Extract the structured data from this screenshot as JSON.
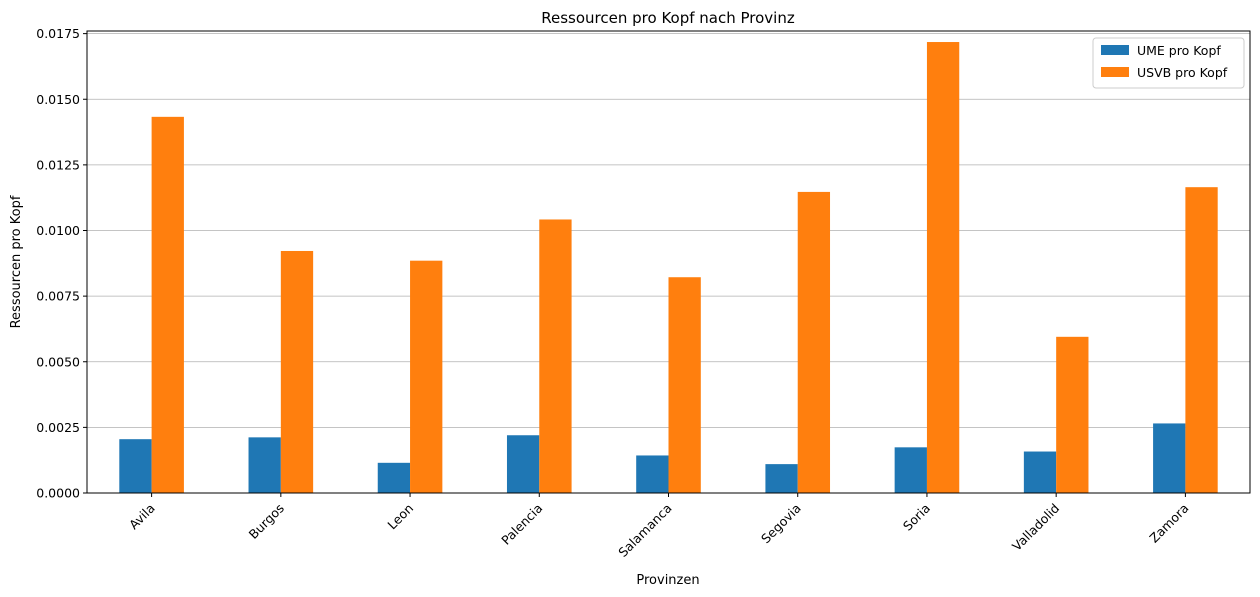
{
  "chart_data": {
    "type": "bar",
    "title": "Ressourcen pro Kopf nach Provinz",
    "xlabel": "Provinzen",
    "ylabel": "Ressourcen pro Kopf",
    "categories": [
      "Avila",
      "Burgos",
      "Leon",
      "Palencia",
      "Salamanca",
      "Segovia",
      "Soria",
      "Valladolid",
      "Zamora"
    ],
    "series": [
      {
        "name": "UME pro Kopf",
        "color": "#1f77b4",
        "values": [
          0.00205,
          0.00212,
          0.00115,
          0.0022,
          0.00143,
          0.0011,
          0.00174,
          0.00158,
          0.00265
        ]
      },
      {
        "name": "USVB pro Kopf",
        "color": "#ff7f0e",
        "values": [
          0.01433,
          0.00922,
          0.00885,
          0.01042,
          0.00822,
          0.01147,
          0.01718,
          0.00595,
          0.01165
        ]
      }
    ],
    "ylim": [
      0,
      0.0176
    ],
    "yticks": [
      "0.0000",
      "0.0025",
      "0.0050",
      "0.0075",
      "0.0100",
      "0.0125",
      "0.0150",
      "0.0175"
    ],
    "grid": "y",
    "legend_position": "top-right"
  }
}
